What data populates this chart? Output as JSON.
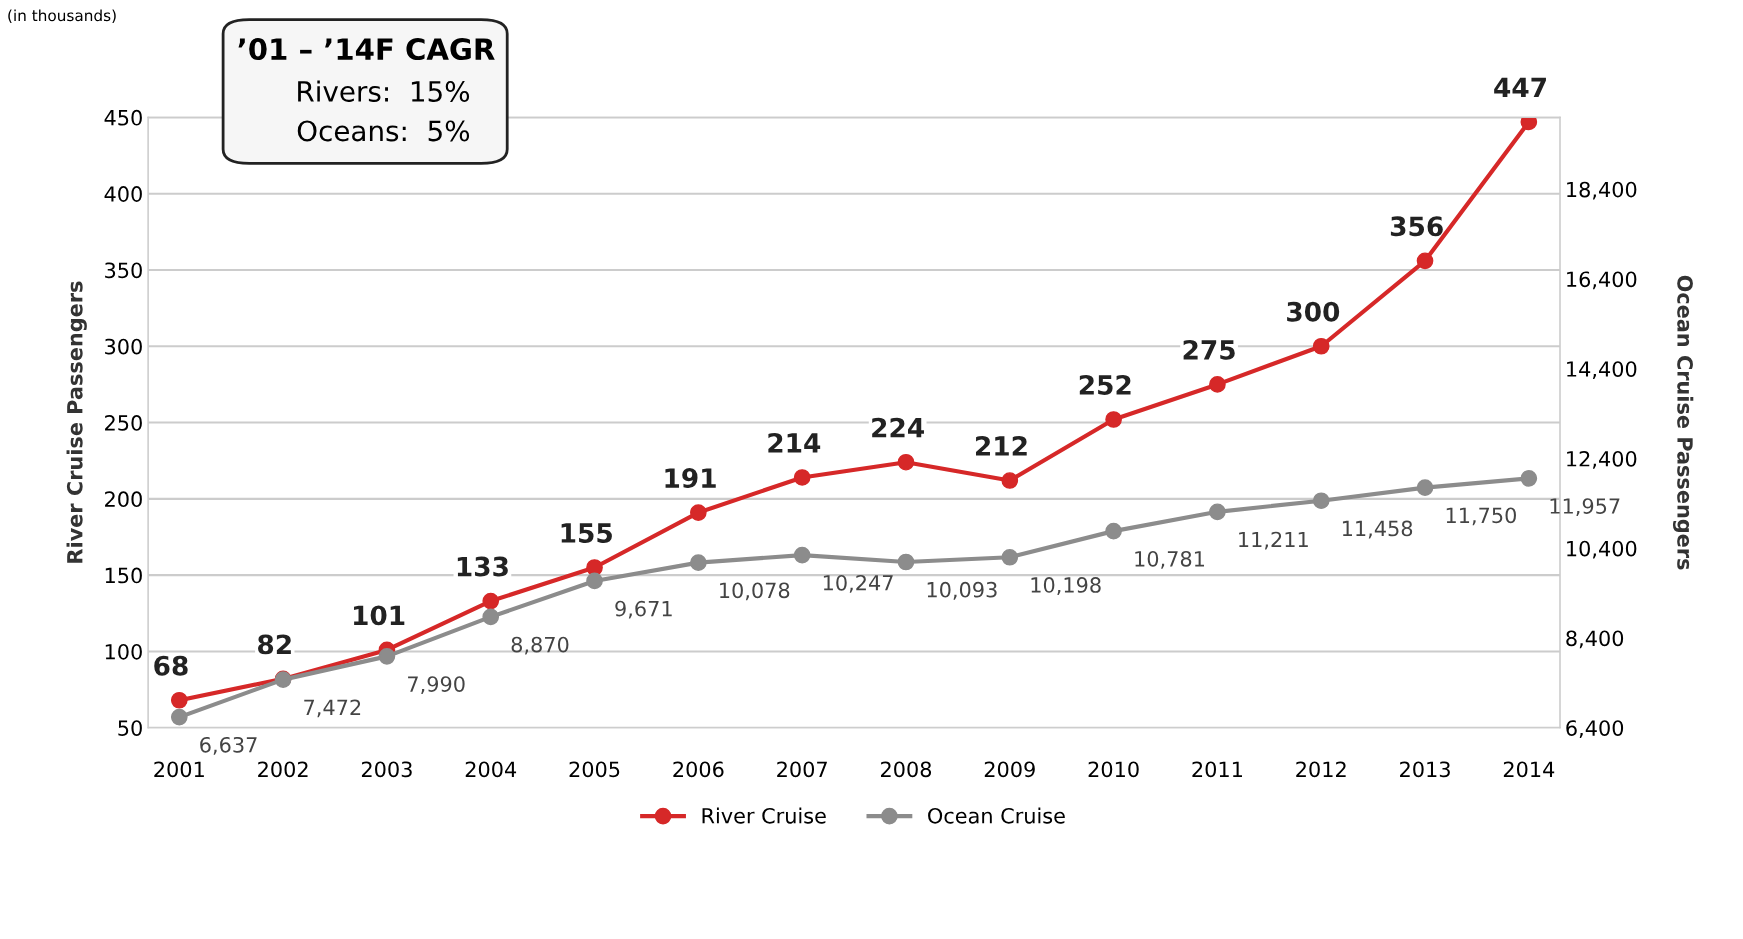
{
  "chart_data": {
    "type": "line",
    "categories": [
      "2001",
      "2002",
      "2003",
      "2004",
      "2005",
      "2006",
      "2007",
      "2008",
      "2009",
      "2010",
      "2011",
      "2012",
      "2013",
      "2014"
    ],
    "series": [
      {
        "name": "River Cruise",
        "color": "#d62828",
        "values": [
          68,
          82,
          101,
          133,
          155,
          191,
          214,
          224,
          212,
          252,
          275,
          300,
          356,
          447
        ],
        "value_labels": [
          "68",
          "82",
          "101",
          "133",
          "155",
          "191",
          "214",
          "224",
          "212",
          "252",
          "275",
          "300",
          "356",
          "447"
        ]
      },
      {
        "name": "Ocean Cruise",
        "color": "#8c8c8c",
        "axis": "y2",
        "values": [
          6637,
          7472,
          7990,
          8870,
          9671,
          10078,
          10247,
          10093,
          10198,
          10781,
          11211,
          11458,
          11750,
          11957
        ],
        "value_labels": [
          "6,637",
          "7,472",
          "7,990",
          "8,870",
          "9,671",
          "10,078",
          "10,247",
          "10,093",
          "10,198",
          "10,781",
          "11,211",
          "11,458",
          "11,750",
          "11,957"
        ]
      }
    ],
    "ylabel": "River Cruise Passengers",
    "y2label": "Ocean Cruise Passengers",
    "ylim": [
      50,
      450
    ],
    "yticks": [
      50,
      100,
      150,
      200,
      250,
      300,
      350,
      400,
      450
    ],
    "y2lim": [
      6400,
      20000
    ],
    "y2ticks": [
      {
        "value": 6400,
        "label": "6,400"
      },
      {
        "value": 8400,
        "label": "8,400"
      },
      {
        "value": 10400,
        "label": "10,400"
      },
      {
        "value": 12400,
        "label": "12,400"
      },
      {
        "value": 14400,
        "label": "14,400"
      },
      {
        "value": 16400,
        "label": "16,400"
      },
      {
        "value": 18400,
        "label": "18,400"
      }
    ],
    "grid": "y",
    "legend": "bottom",
    "marker": "circle",
    "line_style": "solid",
    "annotations": [
      "(in thousands)",
      "’01 – ’14F CAGR",
      "Rivers:  15%",
      "Oceans:  5%"
    ]
  }
}
